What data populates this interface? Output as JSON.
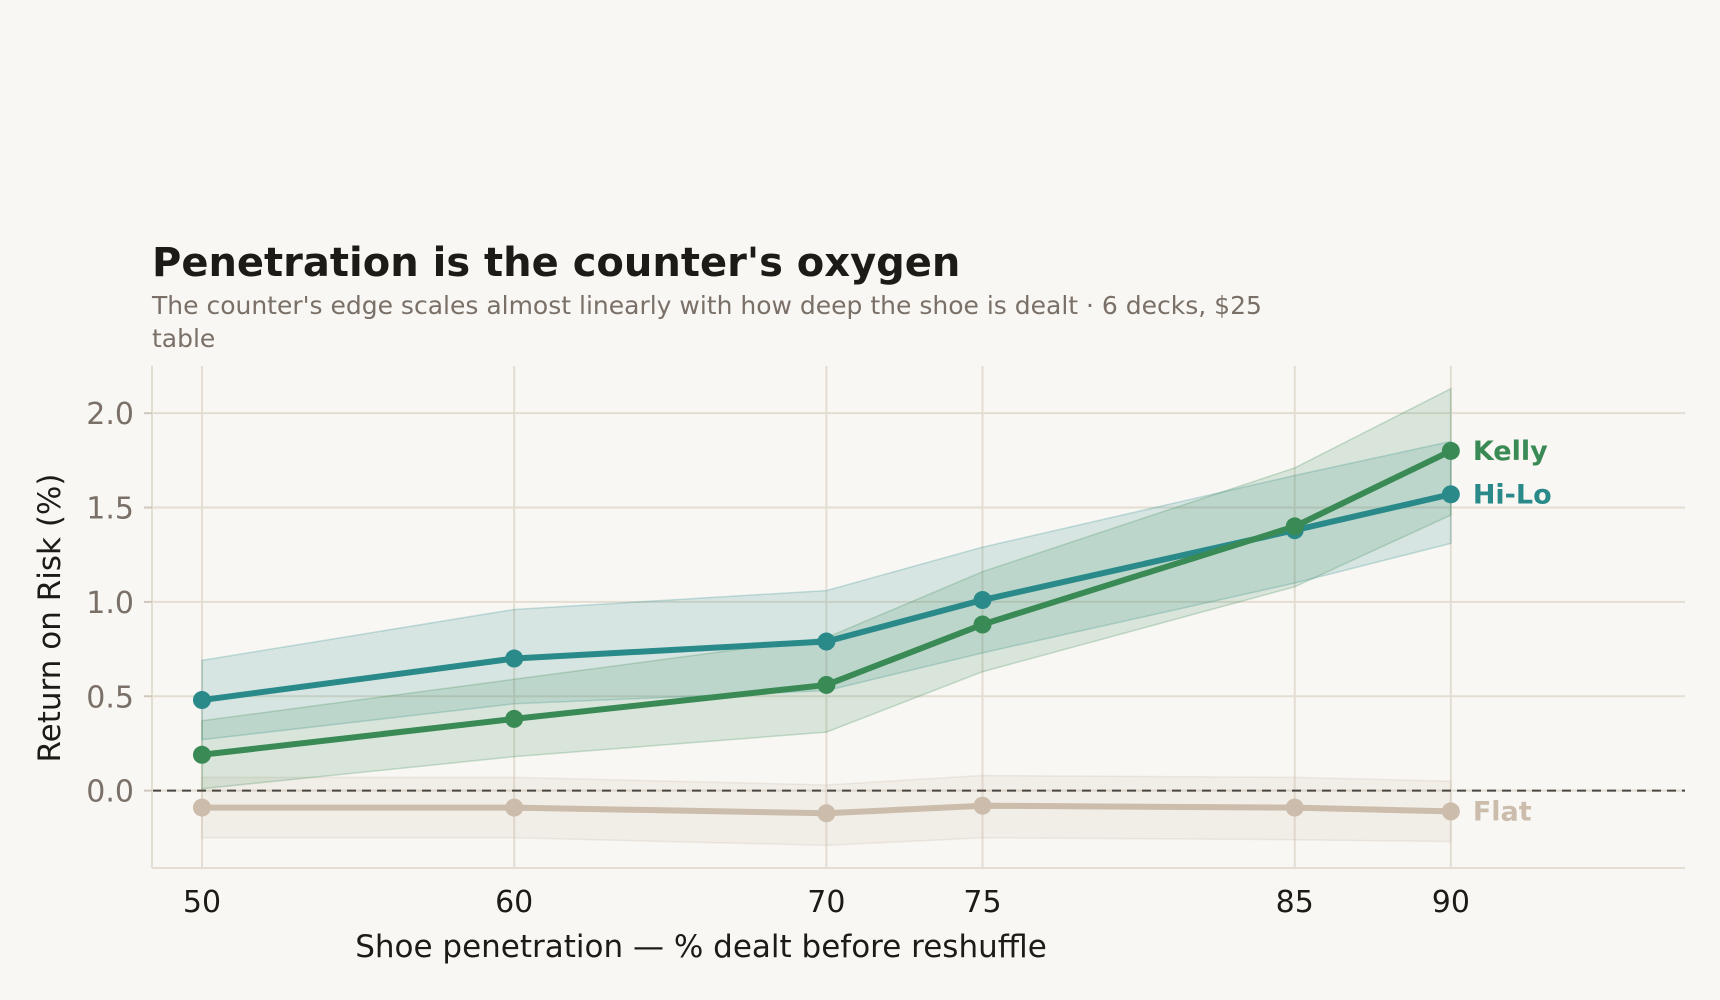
{
  "chart_data": {
    "type": "line",
    "title": "Penetration is the counter's oxygen",
    "subtitle_lines": [
      "The counter's edge scales almost linearly with how deep the shoe is dealt · 6 decks, $25",
      "table"
    ],
    "xlabel": "Shoe penetration  —  % dealt before reshuffle",
    "ylabel": "Return on Risk (%)",
    "x": [
      50,
      60,
      70,
      75,
      85,
      90
    ],
    "x_tick_labels": [
      "50",
      "60",
      "70",
      "75",
      "85",
      "90"
    ],
    "xlim": [
      48.4,
      97.5
    ],
    "ylim": [
      -0.41,
      2.25
    ],
    "y_ticks": [
      0.0,
      0.5,
      1.0,
      1.5,
      2.0
    ],
    "y_tick_labels": [
      "0.0",
      "0.5",
      "1.0",
      "1.5",
      "2.0"
    ],
    "grid": true,
    "reference_line": {
      "y": 0,
      "style": "dashed"
    },
    "series": [
      {
        "name": "Flat",
        "color": "#cbbcab",
        "values": [
          -0.09,
          -0.09,
          -0.12,
          -0.08,
          -0.09,
          -0.11
        ],
        "band_low": [
          -0.25,
          -0.25,
          -0.29,
          -0.25,
          -0.26,
          -0.27
        ],
        "band_high": [
          0.07,
          0.07,
          0.03,
          0.08,
          0.07,
          0.05
        ]
      },
      {
        "name": "Hi-Lo",
        "color": "#2a8a8a",
        "values": [
          0.48,
          0.7,
          0.79,
          1.01,
          1.38,
          1.57
        ],
        "band_low": [
          0.27,
          0.46,
          0.53,
          0.73,
          1.1,
          1.31
        ],
        "band_high": [
          0.69,
          0.96,
          1.06,
          1.29,
          1.67,
          1.85
        ]
      },
      {
        "name": "Kelly",
        "color": "#3a8a55",
        "values": [
          0.19,
          0.38,
          0.56,
          0.88,
          1.4,
          1.8
        ],
        "band_low": [
          0.01,
          0.18,
          0.31,
          0.63,
          1.08,
          1.46
        ],
        "band_high": [
          0.37,
          0.59,
          0.81,
          1.16,
          1.71,
          2.13
        ]
      }
    ]
  }
}
